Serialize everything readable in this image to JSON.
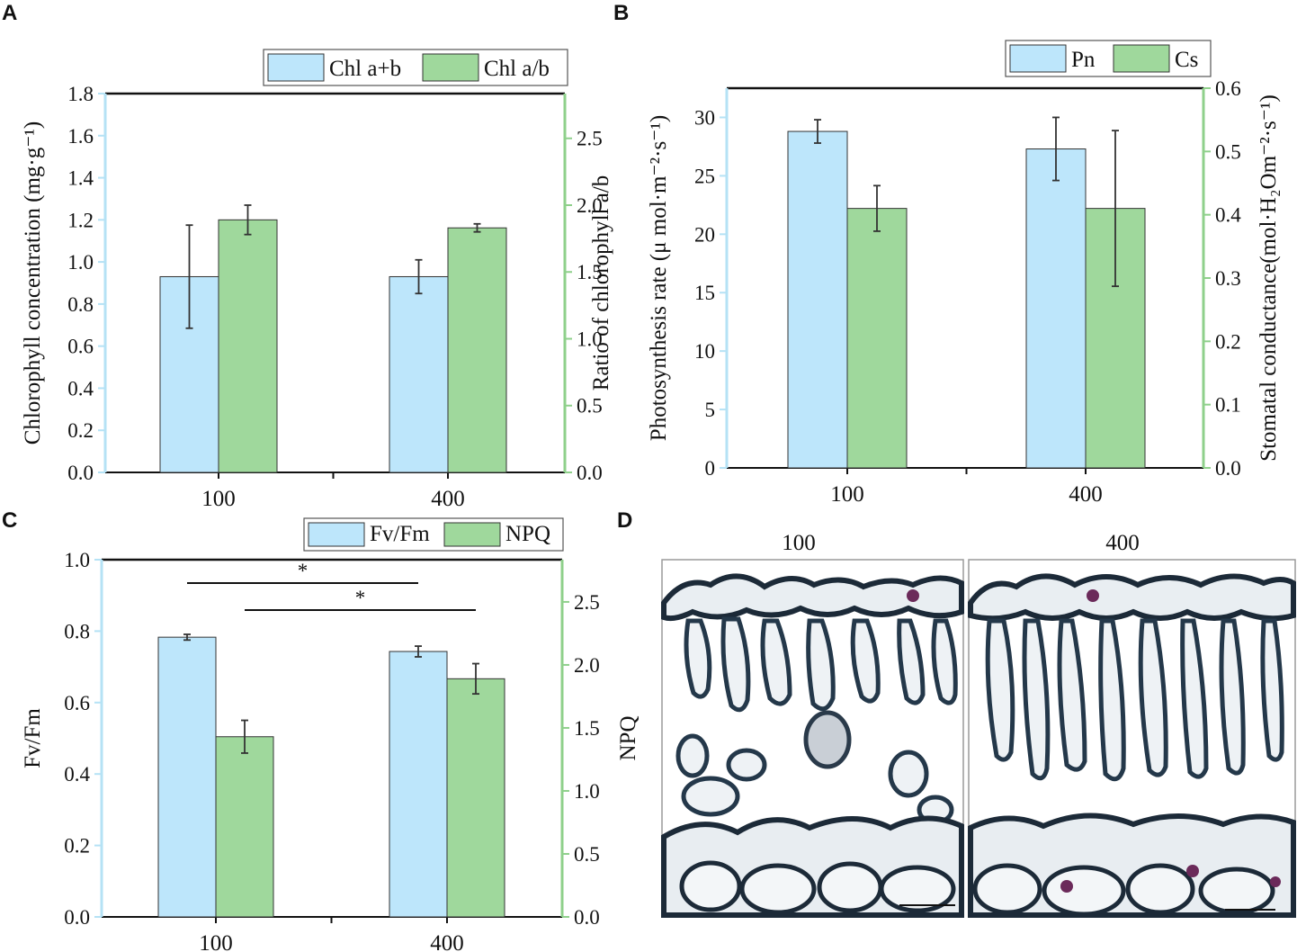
{
  "colors": {
    "blue": "#bde6fb",
    "green": "#9fd89c",
    "blue_axis": "#b5e2f5",
    "green_axis": "#8fd08b",
    "ink": "#333333"
  },
  "chart_data": [
    {
      "panel": "A",
      "type": "bar",
      "categories": [
        "100",
        "400"
      ],
      "series": [
        {
          "name": "Chl a+b",
          "axis": "left",
          "values": [
            0.93,
            0.93
          ],
          "errors": [
            0.245,
            0.08
          ]
        },
        {
          "name": "Chl a/b",
          "axis": "right",
          "values": [
            1.89,
            1.83
          ],
          "errors": [
            0.11,
            0.03
          ]
        }
      ],
      "ylabel": "Chlorophyll concentration (mg·g⁻¹)",
      "y2label": "Ratio of chlorophyll a/b",
      "ylim": [
        0,
        1.8
      ],
      "yticks": [
        "0.0",
        "0.2",
        "0.4",
        "0.6",
        "0.8",
        "1.0",
        "1.2",
        "1.4",
        "1.6",
        "1.8"
      ],
      "y2lim": [
        0,
        2.835
      ],
      "y2ticks": [
        "0.0",
        "0.5",
        "1.0",
        "1.5",
        "2.0",
        "2.5"
      ],
      "legend": [
        "Chl a+b",
        "Chl a/b"
      ],
      "significance": []
    },
    {
      "panel": "B",
      "type": "bar",
      "categories": [
        "100",
        "400"
      ],
      "series": [
        {
          "name": "Pn",
          "axis": "left",
          "values": [
            28.8,
            27.3
          ],
          "errors": [
            1.0,
            2.7
          ]
        },
        {
          "name": "Cs",
          "axis": "right",
          "values": [
            0.41,
            0.41
          ],
          "errors": [
            0.036,
            0.123
          ]
        }
      ],
      "ylabel": "Photosynthesis rate (μ mol·m⁻²·s⁻¹)",
      "y2label": "Stomatal conductance(mol·H₂Om⁻²·s⁻¹)",
      "ylim": [
        0,
        32.5
      ],
      "yticks": [
        "0",
        "5",
        "10",
        "15",
        "20",
        "25",
        "30"
      ],
      "y2lim": [
        0,
        0.6
      ],
      "y2ticks": [
        "0.0",
        "0.1",
        "0.2",
        "0.3",
        "0.4",
        "0.5",
        "0.6"
      ],
      "legend": [
        "Pn",
        "Cs"
      ],
      "significance": []
    },
    {
      "panel": "C",
      "type": "bar",
      "categories": [
        "100",
        "400"
      ],
      "series": [
        {
          "name": "Fv/Fm",
          "axis": "left",
          "values": [
            0.783,
            0.743
          ],
          "errors": [
            0.008,
            0.015
          ]
        },
        {
          "name": "NPQ",
          "axis": "right",
          "values": [
            1.43,
            1.89
          ],
          "errors": [
            0.13,
            0.12
          ]
        }
      ],
      "ylabel": "Fv/Fm",
      "y2label": "NPQ",
      "ylim": [
        0,
        1.0
      ],
      "yticks": [
        "0.0",
        "0.2",
        "0.4",
        "0.6",
        "0.8",
        "1.0"
      ],
      "y2lim": [
        0,
        2.835
      ],
      "y2ticks": [
        "0.0",
        "0.5",
        "1.0",
        "1.5",
        "2.0",
        "2.5"
      ],
      "legend": [
        "Fv/Fm",
        "NPQ"
      ],
      "significance": [
        {
          "label": "*",
          "from": "Fv/Fm 100",
          "to": "Fv/Fm 400"
        },
        {
          "label": "*",
          "from": "NPQ 100",
          "to": "NPQ 400"
        }
      ]
    }
  ],
  "panels": {
    "A": "A",
    "B": "B",
    "C": "C",
    "D": "D"
  },
  "micrographs": {
    "left_title": "100",
    "right_title": "400"
  }
}
